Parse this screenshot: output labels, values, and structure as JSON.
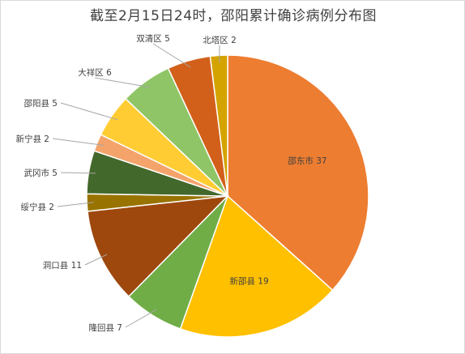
{
  "chart_data": {
    "type": "pie",
    "title": "截至2月15日24时，邵阳累计确诊病例分布图",
    "slices": [
      {
        "label": "邵东市",
        "value": 37,
        "color": "#ed7d31",
        "label_position": "inside"
      },
      {
        "label": "新邵县",
        "value": 19,
        "color": "#ffc000",
        "label_position": "inside"
      },
      {
        "label": "隆回县",
        "value": 7,
        "color": "#70ad47",
        "label_position": "outside"
      },
      {
        "label": "洞口县",
        "value": 11,
        "color": "#9e480e",
        "label_position": "outside"
      },
      {
        "label": "绥宁县",
        "value": 2,
        "color": "#997300",
        "label_position": "outside"
      },
      {
        "label": "武冈市",
        "value": 5,
        "color": "#43682b",
        "label_position": "outside"
      },
      {
        "label": "新宁县",
        "value": 2,
        "color": "#f4a46a",
        "label_position": "outside"
      },
      {
        "label": "邵阳县",
        "value": 5,
        "color": "#ffcd33",
        "label_position": "outside"
      },
      {
        "label": "大祥区",
        "value": 6,
        "color": "#8fc566",
        "label_position": "outside"
      },
      {
        "label": "双清区",
        "value": 5,
        "color": "#d2601a",
        "label_position": "outside"
      },
      {
        "label": "北塔区",
        "value": 2,
        "color": "#d4a300",
        "label_position": "outside"
      }
    ],
    "start": "12 o'clock",
    "direction": "clockwise",
    "legend": "none"
  }
}
